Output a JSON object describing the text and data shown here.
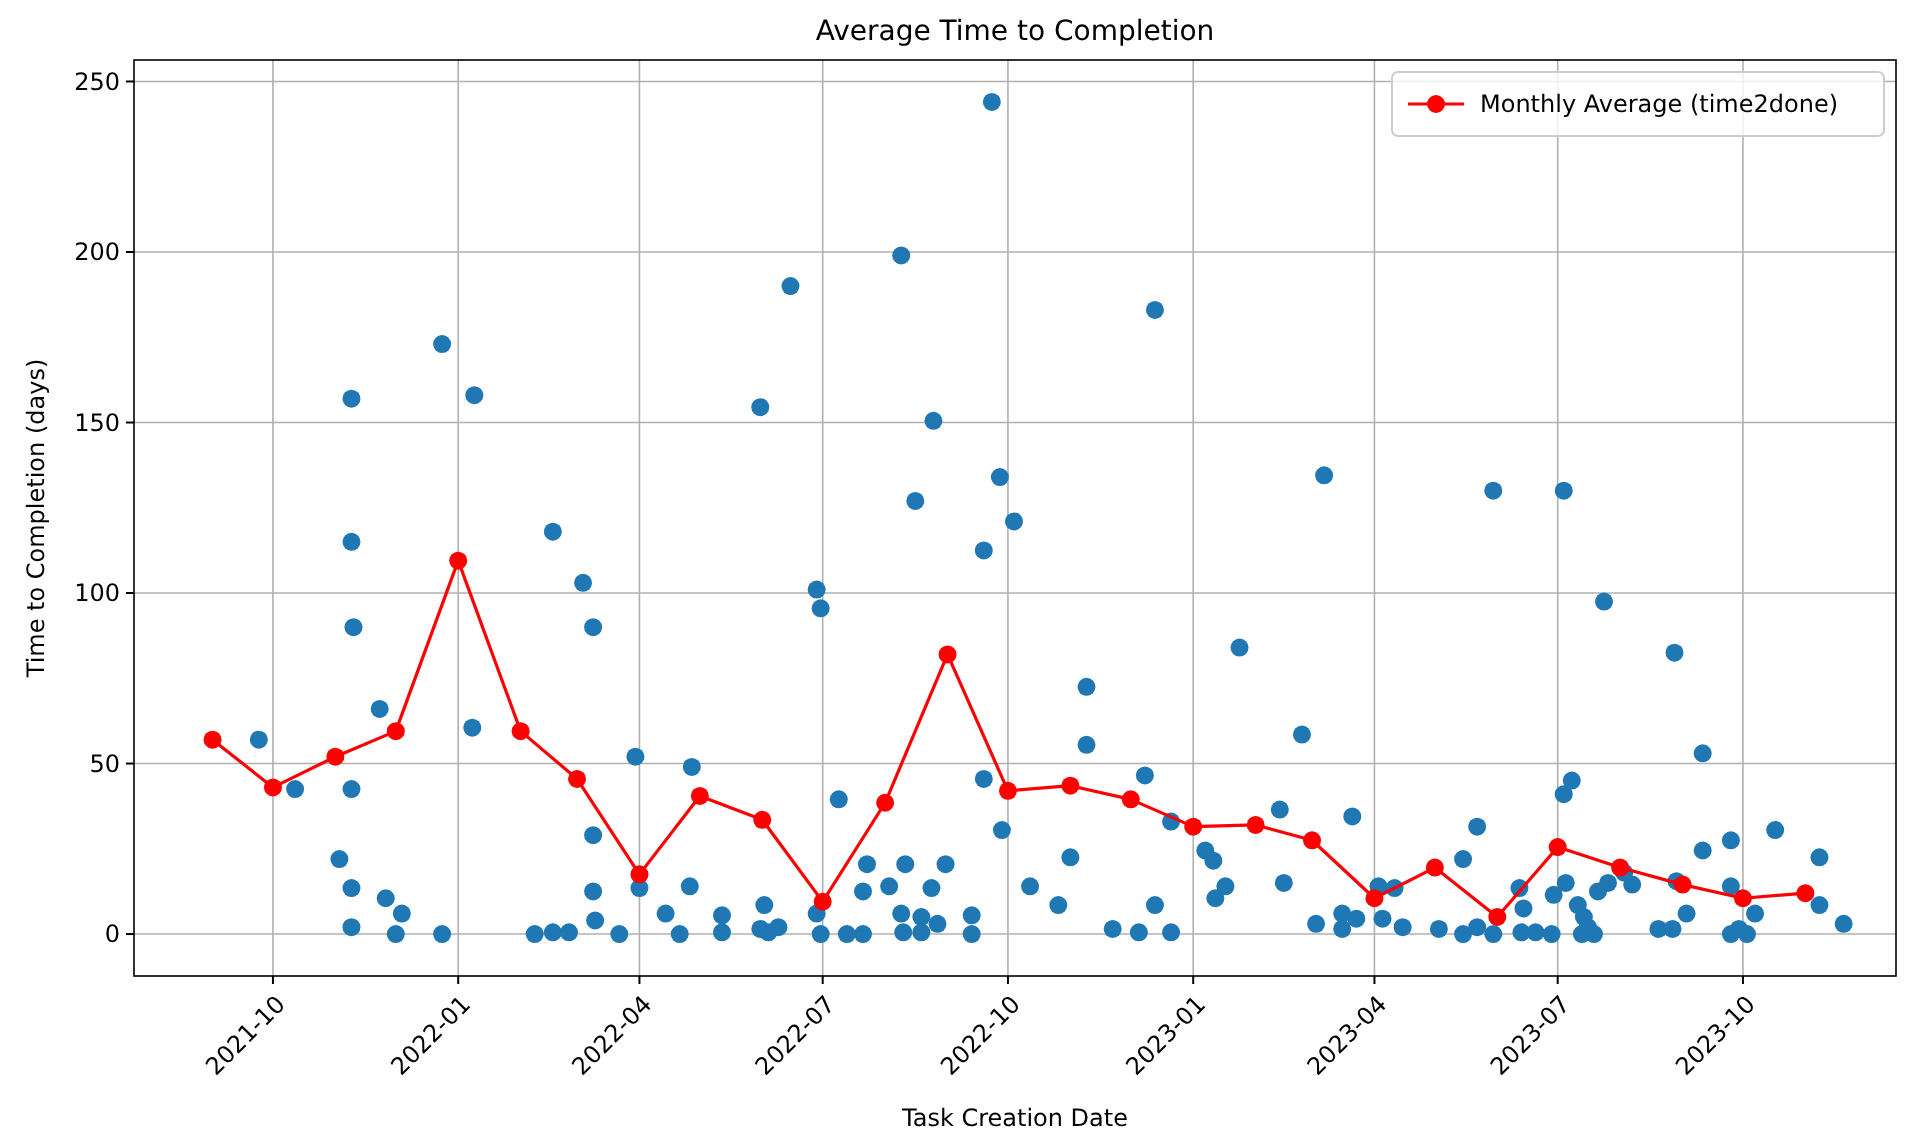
{
  "chart_data": {
    "type": "scatter",
    "title": "Average Time to Completion",
    "xlabel": "Task Creation Date",
    "ylabel": "Time to Completion (days)",
    "xlim": [
      "2021-07-24",
      "2023-12-16"
    ],
    "xticks": [
      "2021-10",
      "2022-01",
      "2022-04",
      "2022-07",
      "2022-10",
      "2023-01",
      "2023-04",
      "2023-07",
      "2023-10"
    ],
    "ylim": [
      -12.3,
      256.3
    ],
    "yticks": [
      0,
      50,
      100,
      150,
      200,
      250
    ],
    "grid": true,
    "legend": "top right",
    "marker": "circle",
    "series": [
      {
        "color": "#1f77b4",
        "x": [
          "2021-09-24",
          "2021-10-12",
          "2021-11-09",
          "2021-11-09",
          "2021-11-09",
          "2021-11-09",
          "2021-11-09",
          "2021-11-10",
          "2021-11-03",
          "2021-11-23",
          "2021-11-26",
          "2021-12-04",
          "2021-12-01",
          "2021-12-24",
          "2021-12-24",
          "2022-01-09",
          "2022-01-08",
          "2022-02-08",
          "2022-02-17",
          "2022-02-17",
          "2022-02-25",
          "2022-03-04",
          "2022-03-09",
          "2022-03-09",
          "2022-03-09",
          "2022-03-10",
          "2022-03-22",
          "2022-03-30",
          "2022-04-01",
          "2022-04-14",
          "2022-04-21",
          "2022-04-27",
          "2022-04-26",
          "2022-05-12",
          "2022-05-12",
          "2022-05-31",
          "2022-05-31",
          "2022-06-15",
          "2022-06-02",
          "2022-06-04",
          "2022-06-09",
          "2022-06-28",
          "2022-06-28",
          "2022-06-30",
          "2022-06-30",
          "2022-07-09",
          "2022-07-13",
          "2022-07-21",
          "2022-07-21",
          "2022-07-23",
          "2022-08-03",
          "2022-08-09",
          "2022-08-09",
          "2022-08-10",
          "2022-08-11",
          "2022-08-16",
          "2022-08-19",
          "2022-08-19",
          "2022-08-25",
          "2022-08-24",
          "2022-08-27",
          "2022-08-31",
          "2022-09-13",
          "2022-09-13",
          "2022-09-23",
          "2022-09-19",
          "2022-09-19",
          "2022-09-27",
          "2022-09-28",
          "2022-10-04",
          "2022-10-12",
          "2022-10-26",
          "2022-11-01",
          "2022-11-09",
          "2022-11-09",
          "2022-11-22",
          "2022-12-05",
          "2022-12-08",
          "2022-12-13",
          "2022-12-13",
          "2022-12-21",
          "2022-12-21",
          "2023-01-07",
          "2023-01-11",
          "2023-01-12",
          "2023-01-17",
          "2023-01-24",
          "2023-02-13",
          "2023-02-15",
          "2023-02-24",
          "2023-03-03",
          "2023-03-07",
          "2023-03-16",
          "2023-03-16",
          "2023-03-23",
          "2023-03-21",
          "2023-04-03",
          "2023-04-05",
          "2023-04-11",
          "2023-04-15",
          "2023-05-03",
          "2023-05-15",
          "2023-05-15",
          "2023-05-22",
          "2023-05-22",
          "2023-05-30",
          "2023-05-30",
          "2023-06-12",
          "2023-06-14",
          "2023-06-13",
          "2023-06-20",
          "2023-06-28",
          "2023-06-29",
          "2023-07-04",
          "2023-07-04",
          "2023-07-08",
          "2023-07-05",
          "2023-07-11",
          "2023-07-14",
          "2023-07-16",
          "2023-07-13",
          "2023-07-19",
          "2023-07-21",
          "2023-07-26",
          "2023-07-24",
          "2023-08-07",
          "2023-08-03",
          "2023-08-20",
          "2023-08-27",
          "2023-08-28",
          "2023-08-29",
          "2023-09-03",
          "2023-09-11",
          "2023-09-11",
          "2023-09-25",
          "2023-09-25",
          "2023-09-25",
          "2023-09-29",
          "2023-10-03",
          "2023-10-07",
          "2023-10-17",
          "2023-11-08",
          "2023-11-08",
          "2023-11-20"
        ],
        "values": [
          57,
          42.5,
          157,
          115,
          42.5,
          13.5,
          2,
          90,
          22,
          66,
          10.5,
          6,
          0,
          173,
          0,
          158,
          60.5,
          0,
          0.5,
          118,
          0.5,
          103,
          90,
          29,
          12.5,
          4,
          0,
          52,
          13.5,
          6,
          0,
          49,
          14,
          5.5,
          0.5,
          154.5,
          1.5,
          190,
          8.5,
          0.5,
          2,
          101,
          6,
          95.5,
          0,
          39.5,
          0,
          0,
          12.5,
          20.5,
          14,
          199,
          6,
          0.5,
          20.5,
          127,
          5,
          0.5,
          150.5,
          13.5,
          3,
          20.5,
          5.5,
          0,
          244,
          112.5,
          45.5,
          134,
          30.5,
          121,
          14,
          8.5,
          22.5,
          72.5,
          55.5,
          1.5,
          0.5,
          46.5,
          183,
          8.5,
          0.5,
          33,
          24.5,
          21.5,
          10.5,
          14,
          84,
          36.5,
          15,
          58.5,
          3,
          134.5,
          6,
          1.5,
          4.5,
          34.5,
          14,
          4.5,
          13.5,
          2,
          1.5,
          22,
          0,
          31.5,
          2,
          130,
          0,
          13.5,
          7.5,
          0.5,
          0.5,
          0,
          11.5,
          130,
          41,
          45,
          15,
          8.5,
          5,
          2,
          0,
          0,
          12.5,
          15,
          97.5,
          14.5,
          18,
          1.5,
          1.5,
          82.5,
          15.5,
          6,
          53,
          24.5,
          27.5,
          14,
          0,
          1.5,
          0,
          6,
          30.5,
          22.5,
          8.5,
          3
        ]
      },
      {
        "type": "line",
        "name": "Monthly Average (time2done)",
        "color": "#ff0000",
        "x": [
          "2021-09-01",
          "2021-10-01",
          "2021-11-01",
          "2021-12-01",
          "2022-01-01",
          "2022-02-01",
          "2022-03-01",
          "2022-04-01",
          "2022-05-01",
          "2022-06-01",
          "2022-07-01",
          "2022-08-01",
          "2022-09-01",
          "2022-10-01",
          "2022-11-01",
          "2022-12-01",
          "2023-01-01",
          "2023-02-01",
          "2023-03-01",
          "2023-04-01",
          "2023-05-01",
          "2023-06-01",
          "2023-07-01",
          "2023-08-01",
          "2023-09-01",
          "2023-10-01",
          "2023-11-01"
        ],
        "values": [
          57,
          43,
          52,
          59.5,
          109.5,
          59.5,
          45.5,
          17.5,
          40.5,
          33.5,
          9.5,
          38.5,
          82,
          42,
          43.5,
          39.5,
          31.5,
          32,
          27.5,
          10.5,
          19.5,
          5,
          25.5,
          19.5,
          14.5,
          10.5,
          12
        ]
      }
    ]
  }
}
